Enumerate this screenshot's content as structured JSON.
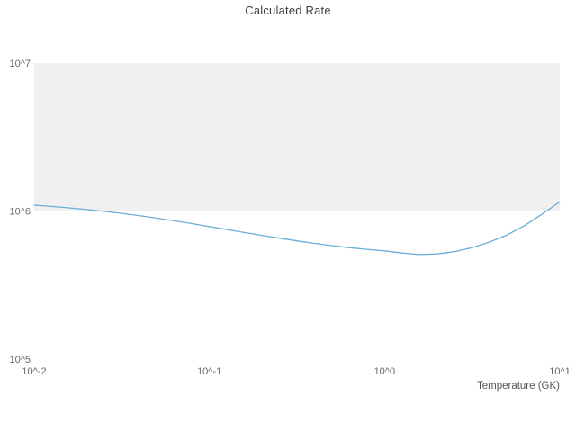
{
  "chart_data": {
    "type": "line",
    "title": "Calculated Rate",
    "xlabel": "Temperature (GK)",
    "ylabel": "",
    "x_scale": "log",
    "y_scale": "log",
    "xlim": [
      0.01,
      10
    ],
    "ylim": [
      100000,
      10000000
    ],
    "x_tick_values": [
      0.01,
      0.1,
      1,
      10
    ],
    "x_tick_labels": [
      "10^-2",
      "10^-1",
      "10^0",
      "10^1"
    ],
    "y_tick_values": [
      100000,
      1000000,
      10000000
    ],
    "y_tick_labels": [
      "10^5",
      "10^6",
      "10^7"
    ],
    "grid": "band",
    "grid_band": {
      "y_from": 1000000,
      "y_to": 10000000,
      "color": "#f0f0f0"
    },
    "line_color": "#6baed6",
    "legend": "none",
    "series": [
      {
        "name": "Calculated Rate",
        "x": [
          0.01,
          0.0126,
          0.0158,
          0.02,
          0.0251,
          0.0316,
          0.0398,
          0.0501,
          0.0631,
          0.0794,
          0.1,
          0.126,
          0.158,
          0.2,
          0.251,
          0.316,
          0.398,
          0.501,
          0.631,
          0.794,
          1.0,
          1.26,
          1.58,
          2.0,
          2.51,
          3.16,
          3.98,
          5.01,
          6.31,
          7.94,
          10.0
        ],
        "y": [
          1096000,
          1074000,
          1050000,
          1023000,
          995000,
          964000,
          931000,
          895000,
          859000,
          822000,
          785000,
          750000,
          716000,
          684000,
          655000,
          628000,
          604000,
          583000,
          565000,
          551000,
          538000,
          520000,
          508000,
          513000,
          531000,
          565000,
          617000,
          689000,
          798000,
          955000,
          1154000
        ]
      }
    ]
  }
}
